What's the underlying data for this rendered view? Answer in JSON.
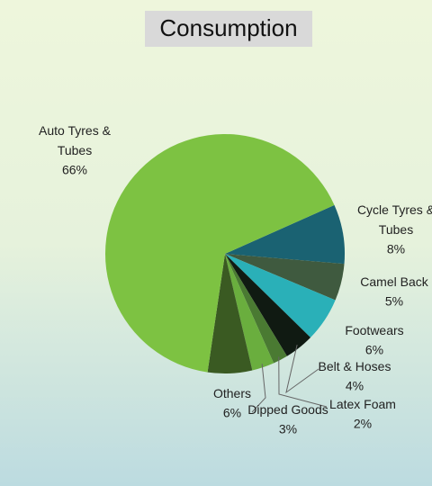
{
  "chart_data": {
    "type": "pie",
    "title": "Consumption",
    "categories": [
      "Cycle Tyres & Tubes",
      "Camel Back",
      "Footwears",
      "Belt & Hoses",
      "Latex Foam",
      "Dipped Goods",
      "Others",
      "Auto Tyres & Tubes"
    ],
    "values": [
      8,
      5,
      6,
      4,
      2,
      3,
      6,
      66
    ],
    "value_labels": [
      "8%",
      "5%",
      "6%",
      "4%",
      "2%",
      "3%",
      "6%",
      "66%"
    ],
    "colors": [
      "#1a6272",
      "#3f5a3f",
      "#2ab0b8",
      "#101a12",
      "#4a7a32",
      "#6aae3e",
      "#3a5a22",
      "#7dc242"
    ]
  }
}
